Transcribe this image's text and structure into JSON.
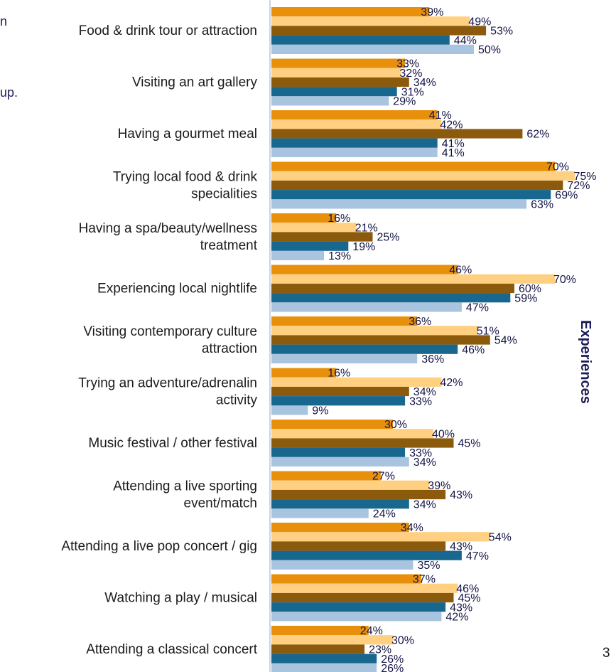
{
  "side_title": "Experiences",
  "page_number": "3",
  "cut_text": [
    "n",
    "up."
  ],
  "chart_data": {
    "type": "bar",
    "orientation": "horizontal",
    "xlim": [
      0,
      80
    ],
    "colors": [
      "#e8900c",
      "#ffd081",
      "#8b5a0c",
      "#17678f",
      "#a9c4de"
    ],
    "categories": [
      "Food & drink tour or attraction",
      "Visiting an art gallery",
      "Having a gourmet meal",
      "Trying local food & drink specialities",
      "Having a spa/beauty/wellness treatment",
      "Experiencing local nightlife",
      "Visiting contemporary culture attraction",
      "Trying an adventure/adrenalin activity",
      "Music festival / other festival",
      "Attending a live sporting event/match",
      "Attending a live pop concert / gig",
      "Watching a play / musical",
      "Attending a classical concert"
    ],
    "category_lines": [
      [
        "Food & drink tour or attraction"
      ],
      [
        "Visiting an art gallery"
      ],
      [
        "Having a gourmet meal"
      ],
      [
        "Trying local food & drink",
        "specialities"
      ],
      [
        "Having a spa/beauty/wellness",
        "treatment"
      ],
      [
        "Experiencing local nightlife"
      ],
      [
        "Visiting contemporary culture",
        "attraction"
      ],
      [
        "Trying an adventure/adrenalin",
        "activity"
      ],
      [
        "Music festival / other festival"
      ],
      [
        "Attending a live sporting",
        "event/match"
      ],
      [
        "Attending a live pop concert / gig"
      ],
      [
        "Watching a play / musical"
      ],
      [
        "Attending a classical concert"
      ]
    ],
    "series": [
      {
        "values": [
          39,
          33,
          41,
          70,
          16,
          46,
          36,
          16,
          30,
          27,
          34,
          37,
          24
        ]
      },
      {
        "values": [
          49,
          32,
          42,
          75,
          21,
          70,
          51,
          42,
          40,
          39,
          54,
          46,
          30
        ]
      },
      {
        "values": [
          53,
          34,
          62,
          72,
          25,
          60,
          54,
          34,
          45,
          43,
          43,
          45,
          23
        ]
      },
      {
        "values": [
          44,
          31,
          41,
          69,
          19,
          59,
          46,
          33,
          33,
          34,
          47,
          43,
          26
        ]
      },
      {
        "values": [
          50,
          29,
          41,
          63,
          13,
          47,
          36,
          9,
          34,
          24,
          35,
          42,
          26
        ]
      }
    ],
    "value_suffix": "%"
  }
}
